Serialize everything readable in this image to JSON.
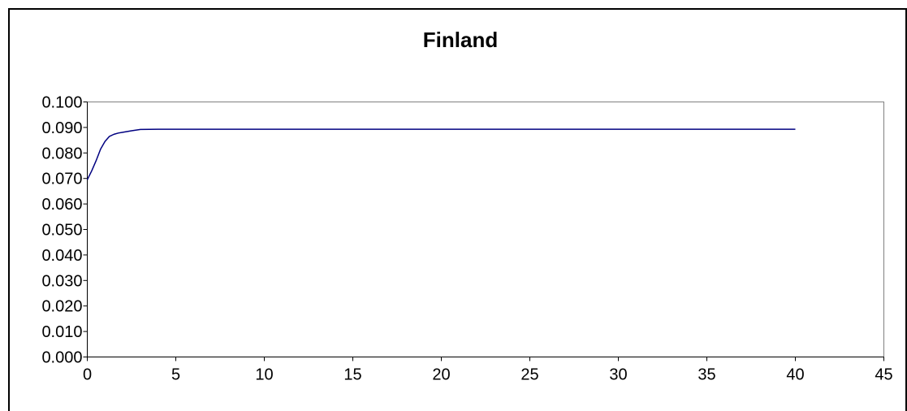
{
  "chart_data": {
    "type": "line",
    "title": "Finland",
    "xlabel": "",
    "ylabel": "",
    "xlim": [
      0,
      45
    ],
    "ylim": [
      0,
      0.1
    ],
    "x_ticks": [
      "0",
      "5",
      "10",
      "15",
      "20",
      "25",
      "30",
      "35",
      "40",
      "45"
    ],
    "y_ticks": [
      "0.000",
      "0.010",
      "0.020",
      "0.030",
      "0.040",
      "0.050",
      "0.060",
      "0.070",
      "0.080",
      "0.090",
      "0.100"
    ],
    "grid": false,
    "legend": "none",
    "series": [
      {
        "color": "#000080",
        "x": [
          0,
          0.25,
          0.5,
          0.75,
          1,
          1.25,
          1.5,
          1.75,
          2,
          2.5,
          3,
          4,
          5,
          10,
          15,
          20,
          25,
          30,
          35,
          40
        ],
        "y": [
          0.0695,
          0.073,
          0.077,
          0.0815,
          0.0845,
          0.0865,
          0.0873,
          0.0878,
          0.0881,
          0.0887,
          0.0892,
          0.0893,
          0.0893,
          0.0893,
          0.0893,
          0.0893,
          0.0893,
          0.0893,
          0.0893,
          0.0893
        ]
      }
    ]
  }
}
